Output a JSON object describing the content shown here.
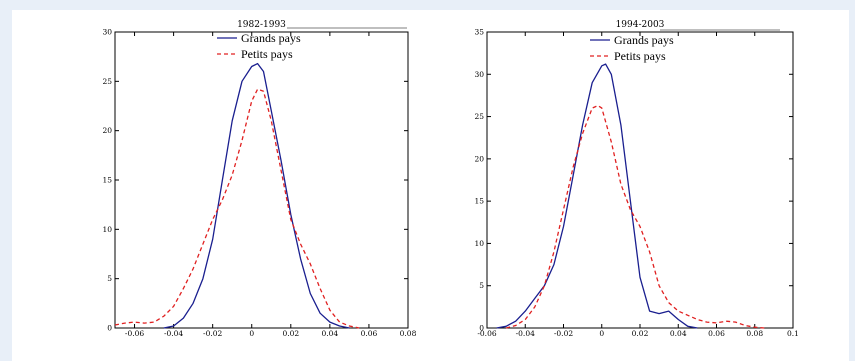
{
  "chart_data": [
    {
      "type": "line",
      "title": "1982-1993",
      "xlim": [
        -0.07,
        0.08
      ],
      "ylim": [
        0,
        30
      ],
      "xticks": [
        -0.06,
        -0.04,
        -0.02,
        0,
        0.02,
        0.04,
        0.06,
        0.08
      ],
      "yticks": [
        0,
        5,
        10,
        15,
        20,
        25,
        30
      ],
      "xtick_labels": [
        "-0.06",
        "-0.04",
        "-0.02",
        "0",
        "0.02",
        "0.04",
        "0.06",
        "0.08"
      ],
      "ytick_labels": [
        "0",
        "5",
        "10",
        "15",
        "20",
        "25",
        "30"
      ],
      "legend": "top-right",
      "series": [
        {
          "name": "Grands pays",
          "color": "#1a1f8f",
          "style": "solid",
          "x": [
            -0.045,
            -0.04,
            -0.035,
            -0.03,
            -0.025,
            -0.02,
            -0.015,
            -0.01,
            -0.005,
            0,
            0.003,
            0.006,
            0.01,
            0.015,
            0.02,
            0.025,
            0.03,
            0.035,
            0.04,
            0.045,
            0.05
          ],
          "y": [
            0,
            0.2,
            1,
            2.5,
            5,
            9,
            15,
            21,
            25,
            26.5,
            26.8,
            26,
            22,
            17,
            11.5,
            7,
            3.5,
            1.5,
            0.6,
            0.2,
            0
          ]
        },
        {
          "name": "Petits pays",
          "color": "#e02020",
          "style": "dashed",
          "x": [
            -0.07,
            -0.065,
            -0.06,
            -0.055,
            -0.05,
            -0.045,
            -0.04,
            -0.035,
            -0.03,
            -0.025,
            -0.02,
            -0.015,
            -0.01,
            -0.005,
            0,
            0.003,
            0.006,
            0.01,
            0.015,
            0.02,
            0.025,
            0.03,
            0.035,
            0.04,
            0.045,
            0.05,
            0.055
          ],
          "y": [
            0.3,
            0.5,
            0.6,
            0.5,
            0.6,
            1.2,
            2.2,
            4,
            6,
            8.5,
            11,
            13,
            15.5,
            19,
            23,
            24.2,
            24,
            21,
            16,
            11,
            8.5,
            6.5,
            4,
            1.8,
            0.6,
            0.2,
            0
          ]
        }
      ]
    },
    {
      "type": "line",
      "title": "1994-2003",
      "xlim": [
        -0.06,
        0.1
      ],
      "ylim": [
        0,
        35
      ],
      "xticks": [
        -0.06,
        -0.04,
        -0.02,
        0,
        0.02,
        0.04,
        0.06,
        0.08,
        0.1
      ],
      "yticks": [
        0,
        5,
        10,
        15,
        20,
        25,
        30,
        35
      ],
      "xtick_labels": [
        "-0.06",
        "-0.04",
        "-0.02",
        "0",
        "0.02",
        "0.04",
        "0.06",
        "0.08",
        "0.1"
      ],
      "ytick_labels": [
        "0",
        "5",
        "10",
        "15",
        "20",
        "25",
        "30",
        "35"
      ],
      "legend": "top-right",
      "series": [
        {
          "name": "Grands pays",
          "color": "#1a1f8f",
          "style": "solid",
          "x": [
            -0.055,
            -0.05,
            -0.045,
            -0.04,
            -0.035,
            -0.03,
            -0.025,
            -0.02,
            -0.015,
            -0.01,
            -0.005,
            0,
            0.002,
            0.005,
            0.01,
            0.015,
            0.02,
            0.025,
            0.03,
            0.035,
            0.04,
            0.045,
            0.05
          ],
          "y": [
            0,
            0.2,
            0.8,
            2,
            3.5,
            5,
            7.5,
            12,
            18,
            24,
            29,
            31,
            31.2,
            30,
            24,
            15,
            6,
            2,
            1.7,
            2,
            1,
            0.2,
            0
          ]
        },
        {
          "name": "Petits pays",
          "color": "#e02020",
          "style": "dashed",
          "x": [
            -0.05,
            -0.045,
            -0.04,
            -0.035,
            -0.03,
            -0.025,
            -0.02,
            -0.015,
            -0.01,
            -0.005,
            -0.002,
            0,
            0.005,
            0.01,
            0.015,
            0.02,
            0.025,
            0.03,
            0.035,
            0.04,
            0.045,
            0.05,
            0.055,
            0.06,
            0.065,
            0.07,
            0.075,
            0.08,
            0.085
          ],
          "y": [
            0,
            0.3,
            1,
            2.5,
            5,
            9,
            14,
            19,
            23,
            26,
            26.3,
            26,
            22,
            17,
            14,
            12,
            9,
            5,
            3,
            2,
            1.5,
            1,
            0.7,
            0.6,
            0.8,
            0.7,
            0.3,
            0.1,
            0
          ]
        }
      ]
    }
  ]
}
